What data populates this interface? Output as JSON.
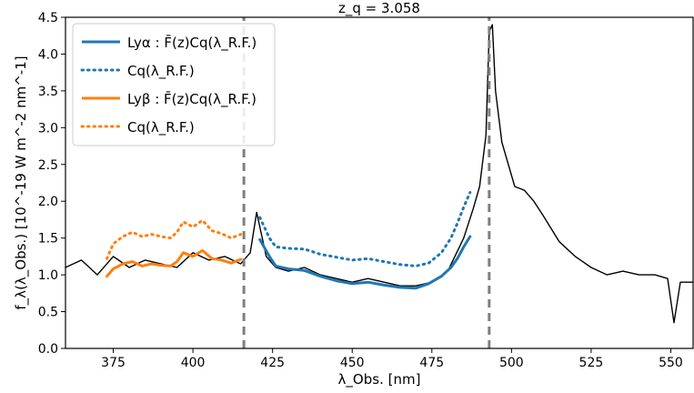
{
  "chart_data": {
    "type": "line",
    "title": "z_q = 3.058",
    "xlabel": "λ_Obs. [nm]",
    "ylabel": "f_λ(λ_Obs.) [10^-19 W m^-2 nm^-1]",
    "xlim": [
      360,
      557
    ],
    "ylim": [
      0,
      4.5
    ],
    "xticks": [
      375,
      400,
      425,
      450,
      475,
      500,
      525,
      550
    ],
    "yticks": [
      0.0,
      0.5,
      1.0,
      1.5,
      2.0,
      2.5,
      3.0,
      3.5,
      4.0,
      4.5
    ],
    "grid": false,
    "legend_position": "top-left",
    "vlines": [
      416,
      493
    ],
    "series": [
      {
        "name": "Lyα : F̄(z)Cq(λ_R.F.)",
        "color": "#1f77b4",
        "style": "solid",
        "x": [
          421,
          424,
          426,
          430,
          435,
          440,
          445,
          450,
          455,
          460,
          465,
          470,
          474,
          478,
          481,
          483,
          485,
          487
        ],
        "y": [
          1.48,
          1.25,
          1.12,
          1.08,
          1.06,
          0.98,
          0.92,
          0.88,
          0.9,
          0.86,
          0.83,
          0.82,
          0.88,
          0.98,
          1.1,
          1.22,
          1.38,
          1.52
        ]
      },
      {
        "name": "Cq(λ_R.F.)",
        "color": "#1f77b4",
        "style": "dotted",
        "x": [
          421,
          424,
          426,
          430,
          435,
          440,
          445,
          450,
          455,
          460,
          465,
          470,
          474,
          478,
          481,
          483,
          485,
          487
        ],
        "y": [
          1.78,
          1.5,
          1.38,
          1.36,
          1.35,
          1.28,
          1.24,
          1.2,
          1.22,
          1.18,
          1.14,
          1.12,
          1.16,
          1.3,
          1.5,
          1.7,
          1.92,
          2.12
        ]
      },
      {
        "name": "Lyβ : F̄(z)Cq(λ_R.F.)",
        "color": "#ff7f0e",
        "style": "solid",
        "x": [
          373,
          375,
          378,
          381,
          384,
          387,
          390,
          393,
          395,
          397,
          400,
          403,
          406,
          409,
          412,
          415
        ],
        "y": [
          0.98,
          1.08,
          1.15,
          1.18,
          1.12,
          1.15,
          1.13,
          1.12,
          1.18,
          1.3,
          1.25,
          1.33,
          1.22,
          1.2,
          1.16,
          1.21
        ]
      },
      {
        "name": "Cq(λ_R.F.)",
        "color": "#ff7f0e",
        "style": "dotted",
        "x": [
          373,
          375,
          378,
          381,
          384,
          387,
          390,
          393,
          395,
          397,
          400,
          403,
          406,
          409,
          412,
          415
        ],
        "y": [
          1.22,
          1.42,
          1.52,
          1.58,
          1.52,
          1.55,
          1.52,
          1.5,
          1.58,
          1.72,
          1.65,
          1.74,
          1.6,
          1.56,
          1.5,
          1.55
        ]
      },
      {
        "name": "",
        "color": "#000000",
        "style": "solid",
        "x": [
          360,
          365,
          370,
          375,
          380,
          385,
          390,
          395,
          400,
          405,
          410,
          415,
          418,
          420,
          423,
          426,
          430,
          435,
          440,
          445,
          450,
          455,
          460,
          465,
          470,
          475,
          480,
          485,
          488,
          490,
          492,
          493,
          494,
          495,
          497,
          499,
          501,
          504,
          507,
          510,
          515,
          520,
          525,
          530,
          535,
          540,
          545,
          549,
          551,
          553,
          557
        ],
        "y": [
          1.1,
          1.2,
          1.0,
          1.25,
          1.1,
          1.2,
          1.15,
          1.1,
          1.3,
          1.2,
          1.25,
          1.15,
          1.3,
          1.85,
          1.25,
          1.1,
          1.05,
          1.1,
          1.0,
          0.95,
          0.9,
          0.95,
          0.9,
          0.85,
          0.85,
          0.9,
          1.05,
          1.5,
          1.9,
          2.2,
          2.9,
          4.3,
          4.4,
          3.5,
          2.8,
          2.5,
          2.2,
          2.15,
          2.0,
          1.8,
          1.45,
          1.25,
          1.1,
          1.0,
          1.05,
          1.0,
          1.0,
          0.95,
          0.35,
          0.9,
          0.9
        ]
      }
    ]
  }
}
